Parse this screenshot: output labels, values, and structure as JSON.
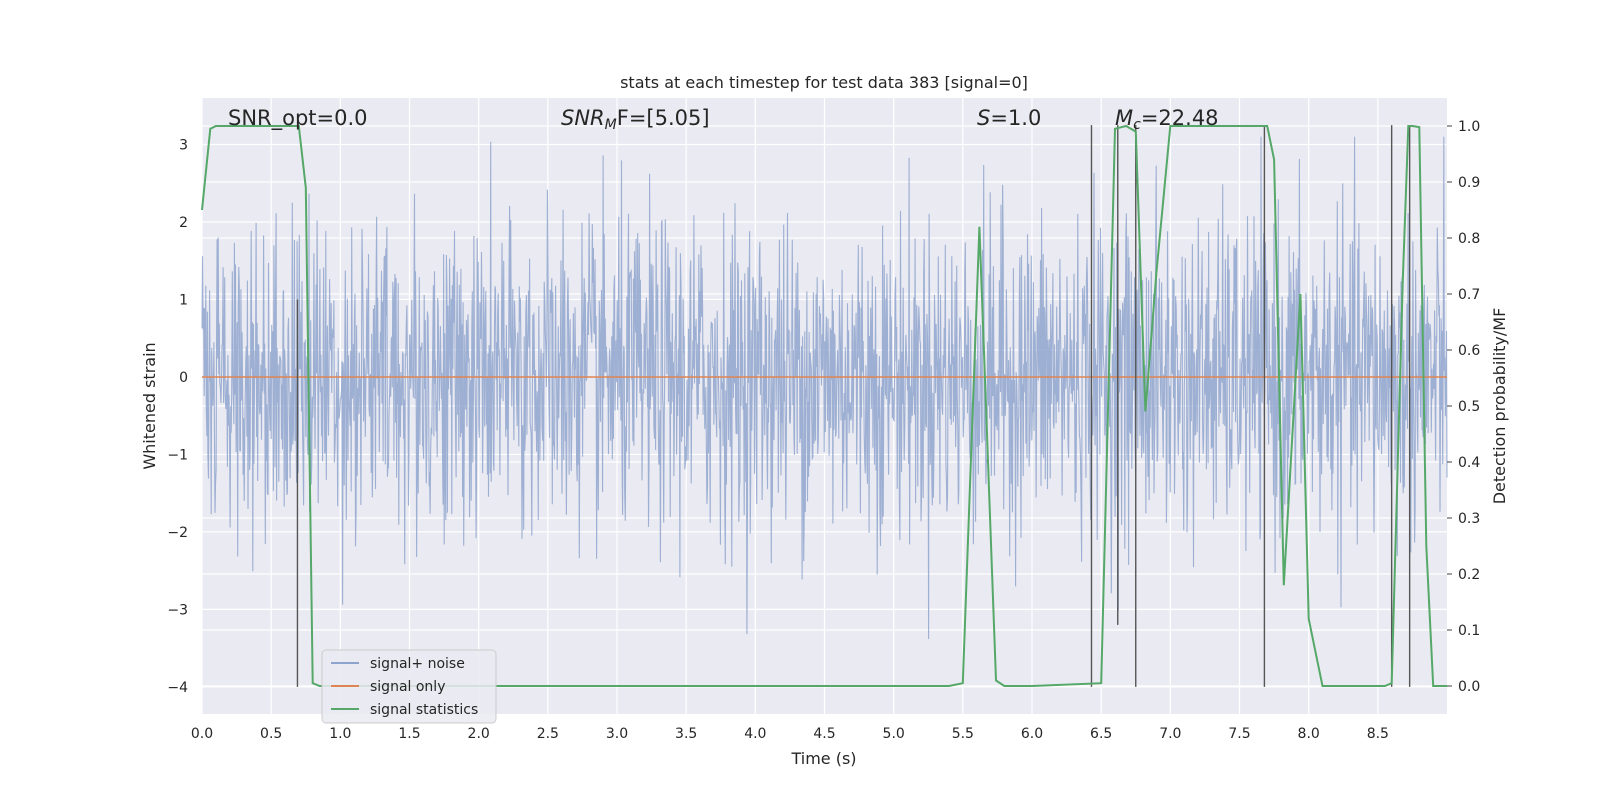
{
  "chart_data": {
    "type": "line",
    "title": "stats at each timestep for test data 383 [signal=0]",
    "xlabel": "Time (s)",
    "ylabel": "Whitened strain",
    "y2label": "Detection probability/MF",
    "xlim": [
      0.0,
      9.0
    ],
    "ylim": [
      -4.35,
      3.6
    ],
    "y2lim": [
      -0.05,
      1.05
    ],
    "grid": true,
    "legend_position": "lower-left",
    "x_ticks": [
      "0.0",
      "0.5",
      "1.0",
      "1.5",
      "2.0",
      "2.5",
      "3.0",
      "3.5",
      "4.0",
      "4.5",
      "5.0",
      "5.5",
      "6.0",
      "6.5",
      "7.0",
      "7.5",
      "8.0",
      "8.5"
    ],
    "y_ticks": [
      "3",
      "2",
      "1",
      "0",
      "−1",
      "−2",
      "−3",
      "−4"
    ],
    "y2_ticks": [
      "1.0",
      "0.9",
      "0.8",
      "0.7",
      "0.6",
      "0.5",
      "0.4",
      "0.3",
      "0.2",
      "0.1",
      "0.0"
    ],
    "annotations": [
      {
        "text": "SNR_opt=0.0"
      },
      {
        "base": "SNR",
        "sub": "M",
        "rest": "F=[5.05]"
      },
      {
        "base": "S",
        "sub": "",
        "rest": "=1.0"
      },
      {
        "base": "M",
        "sub": "c",
        "rest": "=22.48"
      }
    ],
    "series": [
      {
        "name": "signal+ noise",
        "color": "#8fa4cc",
        "description_kind": "whitened noise strain, roughly gaussian, sigma ~1, extremes ~±3.1",
        "x_range": [
          0.0,
          9.0
        ],
        "sample_count": 2304
      },
      {
        "name": "signal only",
        "color": "#dd8452",
        "x": [
          0.0,
          9.0
        ],
        "y": [
          0.0,
          0.0
        ]
      },
      {
        "name": "signal statistics",
        "color": "#55a868",
        "axis": "right",
        "x": [
          0.0,
          0.06,
          0.1,
          0.2,
          0.3,
          0.4,
          0.5,
          0.6,
          0.7,
          0.75,
          0.8,
          0.85,
          0.9,
          1.0,
          1.5,
          2.0,
          2.5,
          3.0,
          3.5,
          4.0,
          4.5,
          5.0,
          5.4,
          5.5,
          5.62,
          5.74,
          5.8,
          5.9,
          6.0,
          6.5,
          6.6,
          6.68,
          6.75,
          6.82,
          6.9,
          7.0,
          7.5,
          7.7,
          7.75,
          7.82,
          7.94,
          8.0,
          8.05,
          8.1,
          8.2,
          8.5,
          8.55,
          8.6,
          8.68,
          8.72,
          8.75,
          8.8,
          8.85,
          8.9,
          9.0
        ],
        "y": [
          0.85,
          0.995,
          1.0,
          1.0,
          1.0,
          1.0,
          1.0,
          1.0,
          1.0,
          0.89,
          0.005,
          0.0,
          0.0,
          0.0,
          0.0,
          0.0,
          0.0,
          0.0,
          0.0,
          0.0,
          0.0,
          0.0,
          0.0,
          0.005,
          0.82,
          0.01,
          0.0,
          0.0,
          0.0,
          0.005,
          0.995,
          1.0,
          0.99,
          0.49,
          0.74,
          1.0,
          1.0,
          1.0,
          0.94,
          0.18,
          0.7,
          0.12,
          0.06,
          0.0,
          0.0,
          0.0,
          0.0,
          0.005,
          0.72,
          1.0,
          1.0,
          0.998,
          0.25,
          0.0,
          0.0
        ]
      }
    ],
    "vertical_markers": [
      {
        "x": 0.69,
        "y_top": 1.0,
        "y_bottom": -4.0
      },
      {
        "x": 6.43,
        "y_top": 3.25,
        "y_bottom": -4.0
      },
      {
        "x": 6.62,
        "y_top": 3.25,
        "y_bottom": -3.2
      },
      {
        "x": 6.75,
        "y_top": 3.25,
        "y_bottom": -4.0
      },
      {
        "x": 7.68,
        "y_top": 3.25,
        "y_bottom": -4.0
      },
      {
        "x": 8.6,
        "y_top": 3.25,
        "y_bottom": -4.0
      },
      {
        "x": 8.73,
        "y_top": 3.25,
        "y_bottom": -4.0
      }
    ],
    "legend": [
      {
        "label": "signal+ noise",
        "color": "#8fa4cc"
      },
      {
        "label": "signal only",
        "color": "#dd8452"
      },
      {
        "label": "signal statistics",
        "color": "#55a868"
      }
    ],
    "colors": {
      "background": "#eaeaf2",
      "grid": "#ffffff",
      "marker": "#555555"
    }
  }
}
